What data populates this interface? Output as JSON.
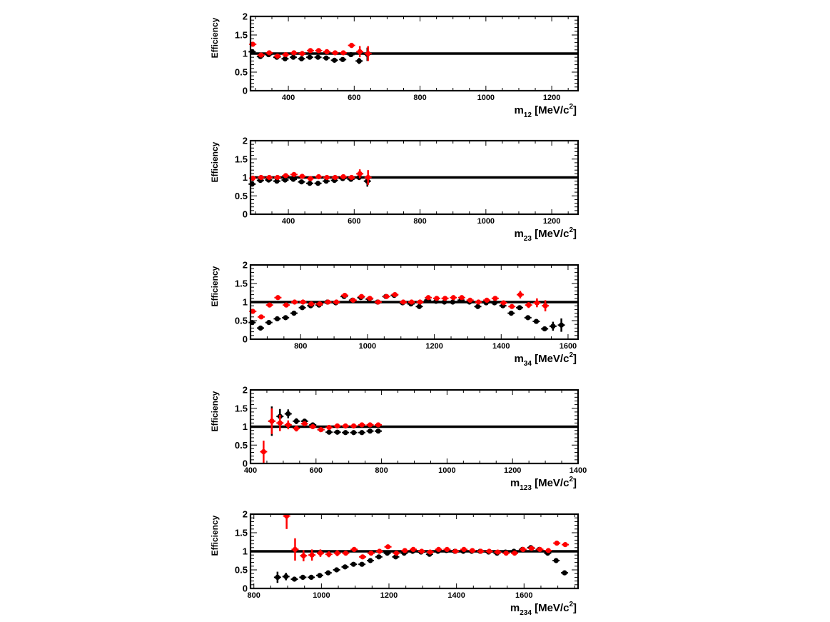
{
  "chart_data": [
    {
      "type": "scatter",
      "ylabel": "Efficiency",
      "xlabel_main": "m",
      "xlabel_sub": "12",
      "xlabel_unit": "[MeV/c",
      "xlabel_sup": "2",
      "xlabel_close": "]",
      "xlim": [
        285,
        1280
      ],
      "ylim": [
        0,
        2
      ],
      "xticks": [
        400,
        600,
        800,
        1000,
        1200
      ],
      "xtick_labels": [
        "400",
        "600",
        "800",
        "1000",
        "1200"
      ],
      "yticks": [
        0,
        0.5,
        1,
        1.5,
        2
      ],
      "ytick_labels": [
        "0",
        "0.5",
        "1",
        "1.5",
        "2"
      ],
      "reference_line": 1.0,
      "series": [
        {
          "color": "#000000",
          "x": [
            290,
            315,
            340,
            365,
            390,
            415,
            440,
            465,
            490,
            515,
            540,
            565,
            590,
            615,
            640
          ],
          "y": [
            1.05,
            0.92,
            0.97,
            0.9,
            0.86,
            0.9,
            0.86,
            0.9,
            0.9,
            0.88,
            0.82,
            0.84,
            0.97,
            0.8,
            0.98
          ],
          "err": [
            0.03,
            0.03,
            0.03,
            0.03,
            0.03,
            0.03,
            0.03,
            0.03,
            0.03,
            0.03,
            0.03,
            0.04,
            0.05,
            0.08,
            0.18
          ]
        },
        {
          "color": "#ff0000",
          "x": [
            292,
            317,
            342,
            367,
            392,
            417,
            442,
            467,
            492,
            517,
            542,
            567,
            592,
            617,
            642
          ],
          "y": [
            1.25,
            0.96,
            1.02,
            0.93,
            0.97,
            1.02,
            1.0,
            1.08,
            1.08,
            1.05,
            1.02,
            1.02,
            1.22,
            1.05,
            1.0
          ],
          "err": [
            0.05,
            0.04,
            0.04,
            0.04,
            0.04,
            0.04,
            0.04,
            0.04,
            0.04,
            0.04,
            0.04,
            0.04,
            0.07,
            0.15,
            0.2
          ]
        }
      ]
    },
    {
      "type": "scatter",
      "ylabel": "Efficiency",
      "xlabel_main": "m",
      "xlabel_sub": "23",
      "xlabel_unit": "[MeV/c",
      "xlabel_sup": "2",
      "xlabel_close": "]",
      "xlim": [
        285,
        1280
      ],
      "ylim": [
        0,
        2
      ],
      "xticks": [
        400,
        600,
        800,
        1000,
        1200
      ],
      "xtick_labels": [
        "400",
        "600",
        "800",
        "1000",
        "1200"
      ],
      "yticks": [
        0,
        0.5,
        1,
        1.5,
        2
      ],
      "ytick_labels": [
        "0",
        "0.5",
        "1",
        "1.5",
        "2"
      ],
      "reference_line": 1.0,
      "series": [
        {
          "color": "#000000",
          "x": [
            290,
            315,
            340,
            365,
            390,
            415,
            440,
            465,
            490,
            515,
            540,
            565,
            590,
            615,
            640
          ],
          "y": [
            0.82,
            0.92,
            0.93,
            0.9,
            0.93,
            0.95,
            0.88,
            0.84,
            0.84,
            0.9,
            0.92,
            0.97,
            0.95,
            1.0,
            0.9
          ],
          "err": [
            0.03,
            0.03,
            0.03,
            0.03,
            0.03,
            0.03,
            0.03,
            0.03,
            0.03,
            0.03,
            0.03,
            0.03,
            0.04,
            0.07,
            0.15
          ]
        },
        {
          "color": "#ff0000",
          "x": [
            292,
            317,
            342,
            367,
            392,
            417,
            442,
            467,
            492,
            517,
            542,
            567,
            592,
            617,
            642
          ],
          "y": [
            0.98,
            1.0,
            1.0,
            1.0,
            1.05,
            1.08,
            1.03,
            0.97,
            1.02,
            1.0,
            1.0,
            1.02,
            1.0,
            1.1,
            1.0
          ],
          "err": [
            0.04,
            0.04,
            0.04,
            0.04,
            0.04,
            0.04,
            0.04,
            0.04,
            0.04,
            0.04,
            0.04,
            0.04,
            0.05,
            0.12,
            0.2
          ]
        }
      ]
    },
    {
      "type": "scatter",
      "ylabel": "Efficiency",
      "xlabel_main": "m",
      "xlabel_sub": "34",
      "xlabel_unit": "[MeV/c",
      "xlabel_sup": "2",
      "xlabel_close": "]",
      "xlim": [
        650,
        1630
      ],
      "ylim": [
        0,
        2
      ],
      "xticks": [
        800,
        1000,
        1200,
        1400,
        1600
      ],
      "xtick_labels": [
        "800",
        "1000",
        "1200",
        "1400",
        "1600"
      ],
      "yticks": [
        0,
        0.5,
        1,
        1.5,
        2
      ],
      "ytick_labels": [
        "0",
        "0.5",
        "1",
        "1.5",
        "2"
      ],
      "reference_line": 1.0,
      "series": [
        {
          "color": "#000000",
          "x": [
            655,
            680,
            705,
            730,
            755,
            780,
            805,
            830,
            855,
            880,
            905,
            930,
            955,
            980,
            1005,
            1030,
            1055,
            1080,
            1105,
            1130,
            1155,
            1180,
            1205,
            1230,
            1255,
            1280,
            1305,
            1330,
            1355,
            1380,
            1405,
            1430,
            1455,
            1480,
            1505,
            1530,
            1555,
            1580
          ],
          "y": [
            0.45,
            0.3,
            0.45,
            0.55,
            0.58,
            0.7,
            0.85,
            0.9,
            0.92,
            1.0,
            0.98,
            1.15,
            1.05,
            1.12,
            1.08,
            1.0,
            1.15,
            1.18,
            0.98,
            0.95,
            0.88,
            1.05,
            1.02,
            1.0,
            1.0,
            1.05,
            1.0,
            0.88,
            0.98,
            0.98,
            0.9,
            0.7,
            0.85,
            0.58,
            0.48,
            0.28,
            0.35,
            0.38
          ],
          "err": [
            0.04,
            0.03,
            0.03,
            0.03,
            0.03,
            0.03,
            0.03,
            0.03,
            0.03,
            0.03,
            0.03,
            0.04,
            0.03,
            0.03,
            0.03,
            0.03,
            0.04,
            0.04,
            0.03,
            0.03,
            0.03,
            0.03,
            0.03,
            0.03,
            0.03,
            0.03,
            0.03,
            0.03,
            0.03,
            0.03,
            0.03,
            0.03,
            0.03,
            0.03,
            0.04,
            0.05,
            0.12,
            0.18
          ]
        },
        {
          "color": "#ff0000",
          "x": [
            657,
            682,
            707,
            732,
            757,
            782,
            807,
            832,
            857,
            882,
            907,
            932,
            957,
            982,
            1007,
            1032,
            1057,
            1082,
            1107,
            1132,
            1157,
            1182,
            1207,
            1232,
            1257,
            1282,
            1307,
            1332,
            1357,
            1382,
            1407,
            1432,
            1457,
            1482,
            1507,
            1532
          ],
          "y": [
            0.75,
            0.6,
            0.92,
            1.12,
            0.92,
            1.0,
            1.0,
            0.95,
            0.95,
            1.0,
            1.0,
            1.18,
            1.05,
            1.15,
            1.1,
            1.0,
            1.15,
            1.2,
            1.0,
            1.0,
            1.0,
            1.12,
            1.1,
            1.1,
            1.12,
            1.12,
            1.05,
            1.0,
            1.05,
            1.1,
            0.98,
            0.88,
            1.2,
            0.92,
            0.98,
            0.9
          ],
          "err": [
            0.06,
            0.04,
            0.04,
            0.04,
            0.04,
            0.04,
            0.04,
            0.04,
            0.04,
            0.04,
            0.04,
            0.04,
            0.04,
            0.04,
            0.04,
            0.04,
            0.04,
            0.04,
            0.04,
            0.04,
            0.04,
            0.04,
            0.04,
            0.04,
            0.04,
            0.04,
            0.04,
            0.04,
            0.04,
            0.04,
            0.04,
            0.04,
            0.1,
            0.08,
            0.12,
            0.15
          ]
        }
      ]
    },
    {
      "type": "scatter",
      "ylabel": "Efficiency",
      "xlabel_main": "m",
      "xlabel_sub": "123",
      "xlabel_unit": "[MeV/c",
      "xlabel_sup": "2",
      "xlabel_close": "]",
      "xlim": [
        400,
        1400
      ],
      "ylim": [
        0,
        2
      ],
      "xticks": [
        400,
        600,
        800,
        1000,
        1200,
        1400
      ],
      "xtick_labels": [
        "400",
        "600",
        "800",
        "1000",
        "1200",
        "1400"
      ],
      "yticks": [
        0,
        0.5,
        1,
        1.5,
        2
      ],
      "ytick_labels": [
        "0",
        "0.5",
        "1",
        "1.5",
        "2"
      ],
      "reference_line": 1.0,
      "series": [
        {
          "color": "#000000",
          "x": [
            465,
            490,
            515,
            540,
            565,
            590,
            615,
            640,
            665,
            690,
            715,
            740,
            765,
            790
          ],
          "y": [
            1.15,
            1.28,
            1.35,
            1.15,
            1.15,
            1.05,
            0.92,
            0.85,
            0.85,
            0.84,
            0.84,
            0.84,
            0.88,
            0.88
          ],
          "err": [
            0.4,
            0.2,
            0.12,
            0.08,
            0.06,
            0.05,
            0.04,
            0.03,
            0.03,
            0.03,
            0.03,
            0.03,
            0.03,
            0.03
          ]
        },
        {
          "color": "#ff0000",
          "x": [
            440,
            465,
            490,
            515,
            540,
            565,
            590,
            615,
            640,
            665,
            690,
            715,
            740,
            765,
            790
          ],
          "y": [
            0.32,
            1.15,
            1.1,
            1.05,
            0.95,
            1.08,
            1.0,
            0.92,
            0.98,
            1.02,
            1.02,
            1.02,
            1.05,
            1.05,
            1.05
          ],
          "err": [
            0.3,
            0.35,
            0.22,
            0.12,
            0.08,
            0.06,
            0.05,
            0.04,
            0.04,
            0.04,
            0.04,
            0.04,
            0.04,
            0.04,
            0.04
          ]
        }
      ]
    },
    {
      "type": "scatter",
      "ylabel": "Efficiency",
      "xlabel_main": "m",
      "xlabel_sub": "234",
      "xlabel_unit": "[MeV/c",
      "xlabel_sup": "2",
      "xlabel_close": "]",
      "xlim": [
        790,
        1760
      ],
      "ylim": [
        0,
        2
      ],
      "xticks": [
        800,
        1000,
        1200,
        1400,
        1600
      ],
      "xtick_labels": [
        "800",
        "1000",
        "1200",
        "1400",
        "1600"
      ],
      "yticks": [
        0,
        0.5,
        1,
        1.5,
        2
      ],
      "ytick_labels": [
        "0",
        "0.5",
        "1",
        "1.5",
        "2"
      ],
      "reference_line": 1.0,
      "series": [
        {
          "color": "#000000",
          "x": [
            870,
            895,
            920,
            945,
            970,
            995,
            1020,
            1045,
            1070,
            1095,
            1120,
            1145,
            1170,
            1195,
            1220,
            1245,
            1270,
            1295,
            1320,
            1345,
            1370,
            1395,
            1420,
            1445,
            1470,
            1495,
            1520,
            1545,
            1570,
            1595,
            1620,
            1645,
            1670,
            1695,
            1720
          ],
          "y": [
            0.3,
            0.32,
            0.25,
            0.3,
            0.3,
            0.35,
            0.42,
            0.5,
            0.58,
            0.65,
            0.65,
            0.75,
            0.85,
            0.95,
            0.85,
            0.95,
            1.0,
            0.98,
            0.92,
            1.0,
            1.02,
            1.0,
            1.0,
            1.0,
            1.0,
            0.98,
            0.95,
            0.98,
            1.0,
            1.05,
            1.1,
            1.05,
            0.95,
            0.75,
            0.42
          ],
          "err": [
            0.15,
            0.1,
            0.05,
            0.04,
            0.04,
            0.04,
            0.03,
            0.03,
            0.03,
            0.03,
            0.03,
            0.03,
            0.03,
            0.03,
            0.03,
            0.03,
            0.03,
            0.03,
            0.03,
            0.03,
            0.03,
            0.03,
            0.03,
            0.03,
            0.03,
            0.03,
            0.03,
            0.03,
            0.03,
            0.03,
            0.03,
            0.03,
            0.04,
            0.05,
            0.05
          ]
        },
        {
          "color": "#ff0000",
          "x": [
            897,
            922,
            947,
            972,
            997,
            1022,
            1047,
            1072,
            1097,
            1122,
            1147,
            1172,
            1197,
            1222,
            1247,
            1272,
            1297,
            1322,
            1347,
            1372,
            1397,
            1422,
            1447,
            1472,
            1497,
            1522,
            1547,
            1572,
            1597,
            1622,
            1647,
            1672,
            1697,
            1722
          ],
          "y": [
            1.95,
            1.05,
            0.88,
            0.9,
            0.95,
            0.92,
            0.95,
            0.95,
            1.05,
            0.85,
            0.95,
            1.0,
            1.12,
            0.95,
            1.02,
            1.05,
            1.0,
            0.98,
            1.05,
            1.05,
            1.0,
            1.05,
            1.02,
            1.0,
            1.0,
            0.98,
            0.95,
            0.95,
            1.05,
            1.08,
            1.05,
            1.02,
            1.22,
            1.18
          ],
          "err": [
            0.35,
            0.3,
            0.15,
            0.15,
            0.1,
            0.08,
            0.08,
            0.06,
            0.06,
            0.06,
            0.05,
            0.05,
            0.05,
            0.05,
            0.04,
            0.04,
            0.04,
            0.04,
            0.04,
            0.04,
            0.04,
            0.04,
            0.04,
            0.04,
            0.04,
            0.04,
            0.04,
            0.04,
            0.04,
            0.04,
            0.04,
            0.04,
            0.05,
            0.06
          ]
        }
      ]
    }
  ]
}
